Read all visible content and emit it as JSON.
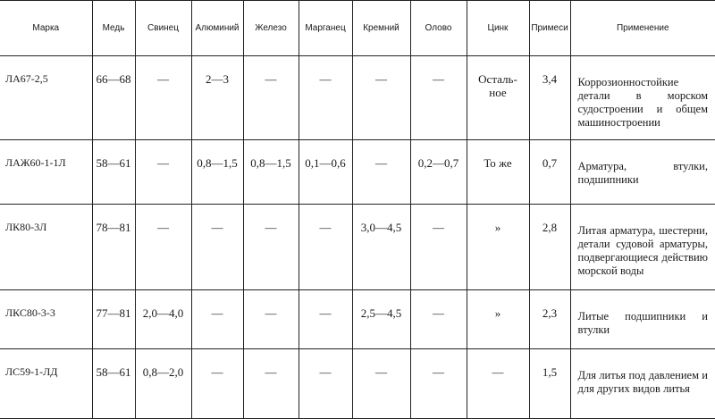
{
  "columns": [
    "Марка",
    "Медь",
    "Свинец",
    "Алюминий",
    "Железо",
    "Марганец",
    "Кремний",
    "Олово",
    "Цинк",
    "Примеси",
    "Применение"
  ],
  "rows": [
    {
      "grade": "ЛА67-2,5",
      "cells": [
        "66—68",
        "—",
        "2—3",
        "—",
        "—",
        "—",
        "—",
        "Осталь-\nное",
        "3,4"
      ],
      "use": "Коррозионностойкие детали в морском судостроении и общем машиностроении"
    },
    {
      "grade": "ЛАЖ60-1-1Л",
      "cells": [
        "58—61",
        "—",
        "0,8—1,5",
        "0,8—1,5",
        "0,1—0,6",
        "—",
        "0,2—0,7",
        "То же",
        "0,7"
      ],
      "use": "Арматура, втулки, подшипники"
    },
    {
      "grade": "ЛК80-3Л",
      "cells": [
        "78—81",
        "—",
        "—",
        "—",
        "—",
        "3,0—4,5",
        "—",
        "»",
        "2,8"
      ],
      "use": "Литая арматура, шестерни, детали судовой арматуры, подвергающиеся действию морской воды"
    },
    {
      "grade": "ЛКС80-3-3",
      "cells": [
        "77—81",
        "2,0—4,0",
        "—",
        "—",
        "—",
        "2,5—4,5",
        "—",
        "»",
        "2,3"
      ],
      "use": "Литые подшипники и втулки"
    },
    {
      "grade": "ЛС59-1-ЛД",
      "cells": [
        "58—61",
        "0,8—2,0",
        "—",
        "—",
        "—",
        "—",
        "—",
        "—",
        "1,5"
      ],
      "use": "Для литья под давлением и для других видов литья"
    }
  ]
}
